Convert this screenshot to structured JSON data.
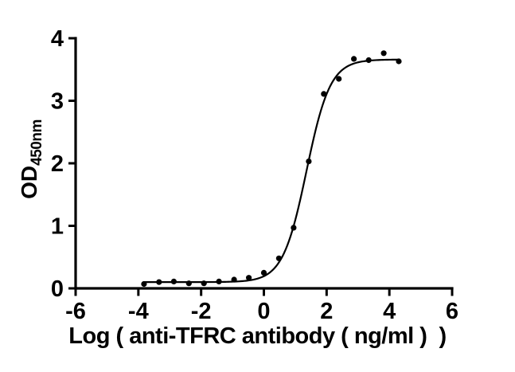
{
  "colors": {
    "background": "#ffffff",
    "ink": "#000000"
  },
  "chart_data": {
    "type": "scatter",
    "title": "",
    "xlabel": "Log ( anti-TFRC antibody ( ng/ml )  )",
    "ylabel": {
      "main": "OD",
      "subscript": "450nm"
    },
    "xlim": [
      -6,
      6
    ],
    "ylim": [
      0,
      4
    ],
    "x_ticks": [
      -6,
      -4,
      -2,
      0,
      2,
      4,
      6
    ],
    "y_ticks": [
      0,
      1,
      2,
      3,
      4
    ],
    "grid": false,
    "legend": "none",
    "marker_color": "#000000",
    "curve_color": "#000000",
    "points": [
      {
        "x": -3.82,
        "y": 0.07
      },
      {
        "x": -3.34,
        "y": 0.1
      },
      {
        "x": -2.87,
        "y": 0.11
      },
      {
        "x": -2.39,
        "y": 0.08
      },
      {
        "x": -1.91,
        "y": 0.08
      },
      {
        "x": -1.43,
        "y": 0.11
      },
      {
        "x": -0.95,
        "y": 0.14
      },
      {
        "x": -0.48,
        "y": 0.17
      },
      {
        "x": 0.0,
        "y": 0.25
      },
      {
        "x": 0.48,
        "y": 0.48
      },
      {
        "x": 0.95,
        "y": 0.97
      },
      {
        "x": 1.43,
        "y": 2.03
      },
      {
        "x": 1.91,
        "y": 3.11
      },
      {
        "x": 2.39,
        "y": 3.35
      },
      {
        "x": 2.87,
        "y": 3.67
      },
      {
        "x": 3.34,
        "y": 3.65
      },
      {
        "x": 3.82,
        "y": 3.76
      },
      {
        "x": 4.3,
        "y": 3.63
      }
    ],
    "fit_curve": {
      "model": "four_parameter_logistic",
      "bottom": 0.1,
      "top": 3.66,
      "logEC50": 1.36,
      "hillslope": 1.15,
      "x_start": -3.82,
      "x_end": 4.3
    }
  }
}
